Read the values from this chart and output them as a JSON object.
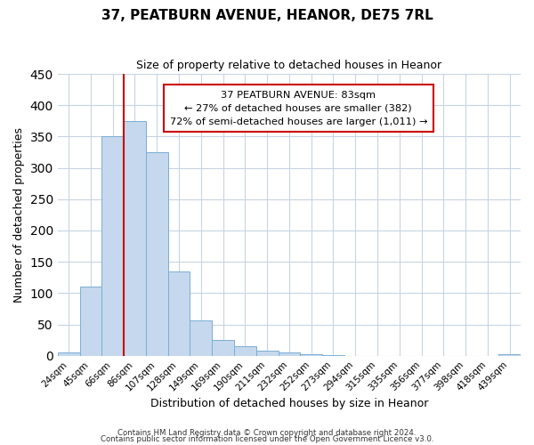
{
  "title": "37, PEATBURN AVENUE, HEANOR, DE75 7RL",
  "subtitle": "Size of property relative to detached houses in Heanor",
  "xlabel": "Distribution of detached houses by size in Heanor",
  "ylabel": "Number of detached properties",
  "bar_labels": [
    "24sqm",
    "45sqm",
    "66sqm",
    "86sqm",
    "107sqm",
    "128sqm",
    "149sqm",
    "169sqm",
    "190sqm",
    "211sqm",
    "232sqm",
    "252sqm",
    "273sqm",
    "294sqm",
    "315sqm",
    "335sqm",
    "356sqm",
    "377sqm",
    "398sqm",
    "418sqm",
    "439sqm"
  ],
  "bar_values": [
    5,
    110,
    350,
    375,
    325,
    135,
    57,
    25,
    15,
    8,
    5,
    3,
    1,
    0,
    0,
    0,
    0,
    0,
    0,
    0,
    3
  ],
  "bar_color": "#c5d8ed",
  "bar_edgecolor": "#7aaed6",
  "property_sqm": 83,
  "property_line_label": "37 PEATBURN AVENUE: 83sqm",
  "annotation_line1": "← 27% of detached houses are smaller (382)",
  "annotation_line2": "72% of semi-detached houses are larger (1,011) →",
  "annotation_box_facecolor": "#ffffff",
  "annotation_box_edgecolor": "#cc0000",
  "vline_color": "#cc0000",
  "ylim": [
    0,
    450
  ],
  "yticks": [
    0,
    50,
    100,
    150,
    200,
    250,
    300,
    350,
    400,
    450
  ],
  "bin_width": 21,
  "footer1": "Contains HM Land Registry data © Crown copyright and database right 2024.",
  "footer2": "Contains public sector information licensed under the Open Government Licence v3.0."
}
